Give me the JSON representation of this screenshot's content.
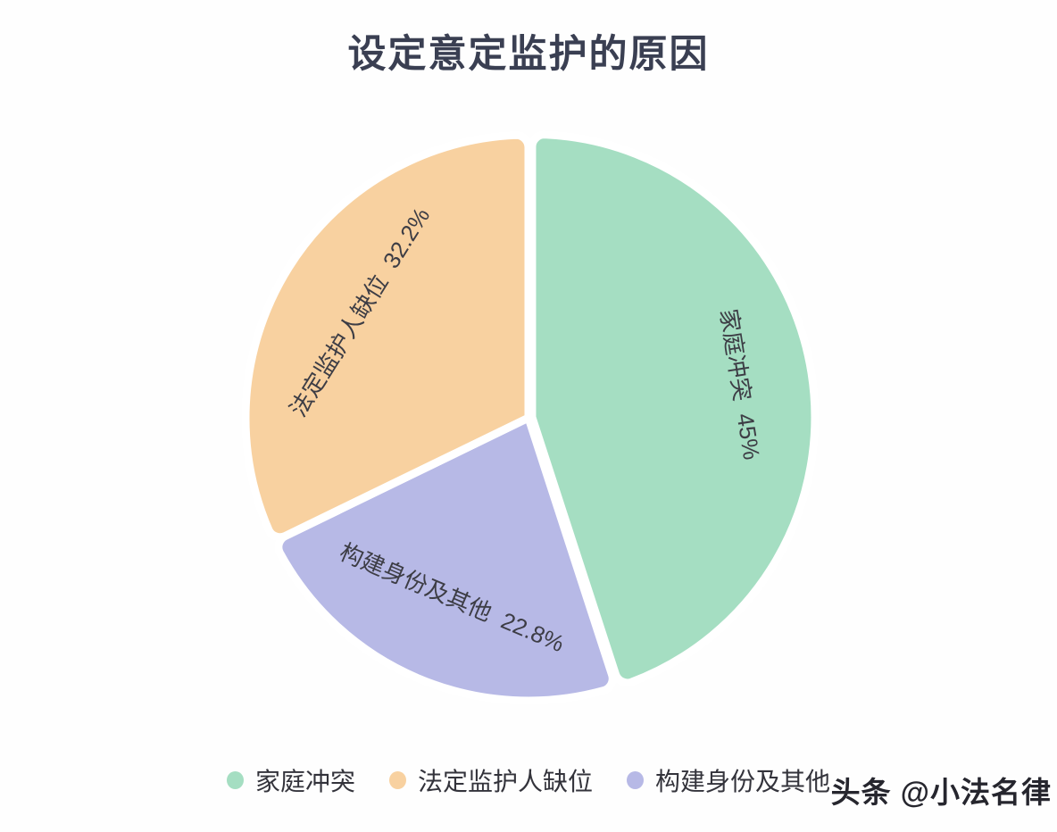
{
  "chart_data": {
    "type": "pie",
    "title": "设定意定监护的原因",
    "unit": "%",
    "total": 100,
    "start_angle": "top",
    "direction": "clockwise",
    "label_position": "inside-tangential",
    "legend_position": "bottom",
    "series": [
      {
        "name": "家庭冲突",
        "value": 45,
        "pct_text": "45%",
        "color": "#a5dec2"
      },
      {
        "name": "构建身份及其他",
        "value": 22.8,
        "pct_text": "22.8%",
        "color": "#b7b9e6"
      },
      {
        "name": "法定监护人缺位",
        "value": 32.2,
        "pct_text": "32.2%",
        "color": "#f8d1a0"
      }
    ],
    "slice_gap_color": "#ffffff"
  },
  "legend": {
    "items": [
      {
        "label": "家庭冲突",
        "color": "#a5dec2"
      },
      {
        "label": "法定监护人缺位",
        "color": "#f8d1a0"
      },
      {
        "label": "构建身份及其他",
        "color": "#b7b9e6"
      }
    ]
  },
  "watermark": {
    "text": "头条 @小法名律"
  }
}
